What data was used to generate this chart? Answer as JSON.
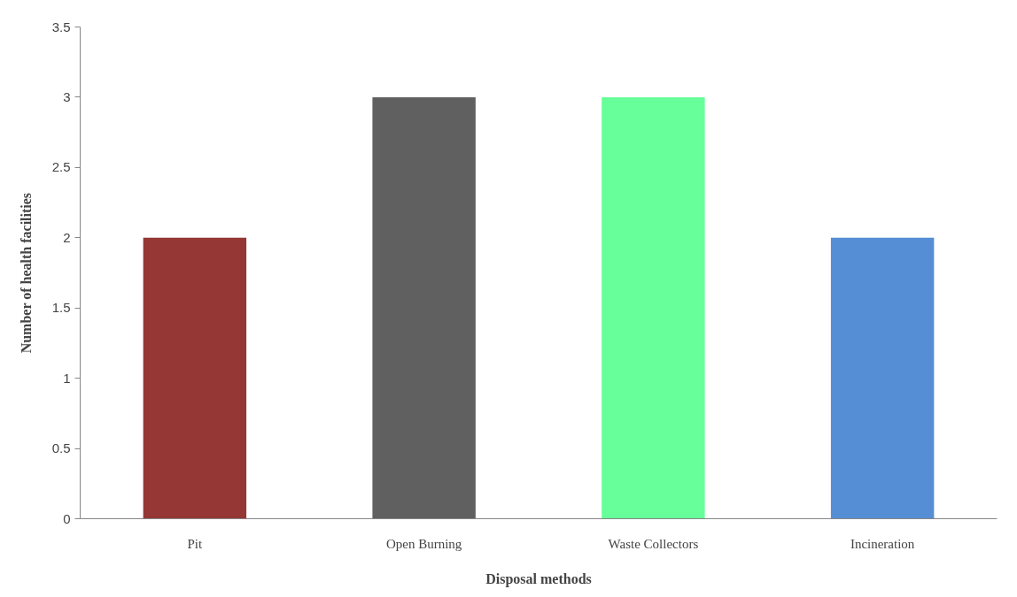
{
  "chart_data": {
    "type": "bar",
    "xlabel": "Disposal methods",
    "ylabel": "Number of health facilities",
    "categories": [
      "Pit",
      "Open Burning",
      "Waste Collectors",
      "Incineration"
    ],
    "values": [
      2,
      3,
      3,
      2
    ],
    "colors": [
      "#953735",
      "#606060",
      "#66ff99",
      "#558ed5"
    ],
    "ylim": [
      0,
      3.5
    ],
    "yticks": [
      0,
      0.5,
      1,
      1.5,
      2,
      2.5,
      3,
      3.5
    ]
  }
}
